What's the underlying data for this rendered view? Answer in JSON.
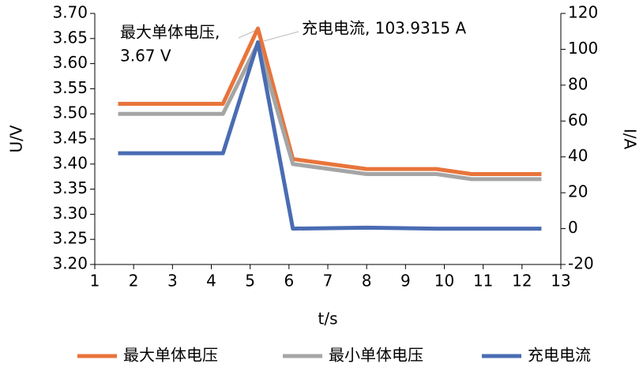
{
  "chart_data": {
    "type": "line",
    "x_label": "t/s",
    "y_label": "U/V",
    "y2_label": "I/A",
    "x": [
      1.6,
      4.3,
      5.2,
      6.1,
      8,
      9.8,
      10.7,
      12.5
    ],
    "series": [
      {
        "name": "最大单体电压",
        "color": "#e8743b",
        "values": [
          3.52,
          3.52,
          3.67,
          3.41,
          3.39,
          3.39,
          3.38,
          3.38
        ]
      },
      {
        "name": "最小单体电压",
        "color": "#a5a5a5",
        "values": [
          3.5,
          3.5,
          3.64,
          3.4,
          3.38,
          3.38,
          3.37,
          3.37
        ]
      },
      {
        "name": "充电电流",
        "color": "#4a6cb3",
        "axis": "y2",
        "values": [
          42,
          42,
          103.9315,
          0,
          0.5,
          0,
          0,
          0
        ]
      }
    ],
    "xlim": [
      1,
      13
    ],
    "xticks": [
      1,
      2,
      3,
      4,
      5,
      6,
      7,
      8,
      9,
      10,
      11,
      12,
      13
    ],
    "ylim": [
      3.2,
      3.7
    ],
    "yticks": [
      {
        "value": 3.2,
        "label": "3.20"
      },
      3.25,
      {
        "value": 3.3,
        "label": "3.30"
      },
      3.35,
      {
        "value": 3.4,
        "label": "3.40"
      },
      3.45,
      {
        "value": 3.5,
        "label": "3.50"
      },
      3.55,
      {
        "value": 3.6,
        "label": "3.60"
      },
      3.65,
      {
        "value": 3.7,
        "label": "3.70"
      }
    ],
    "y2lim": [
      -20,
      120
    ],
    "y2ticks": [
      -20,
      0,
      20,
      40,
      60,
      80,
      100,
      120
    ],
    "annotations": [
      {
        "lines": [
          "最大单体电压,",
          "3.67 V"
        ]
      },
      {
        "lines": [
          "充电电流, 103.9315 A"
        ]
      }
    ],
    "legend": "bottom"
  }
}
